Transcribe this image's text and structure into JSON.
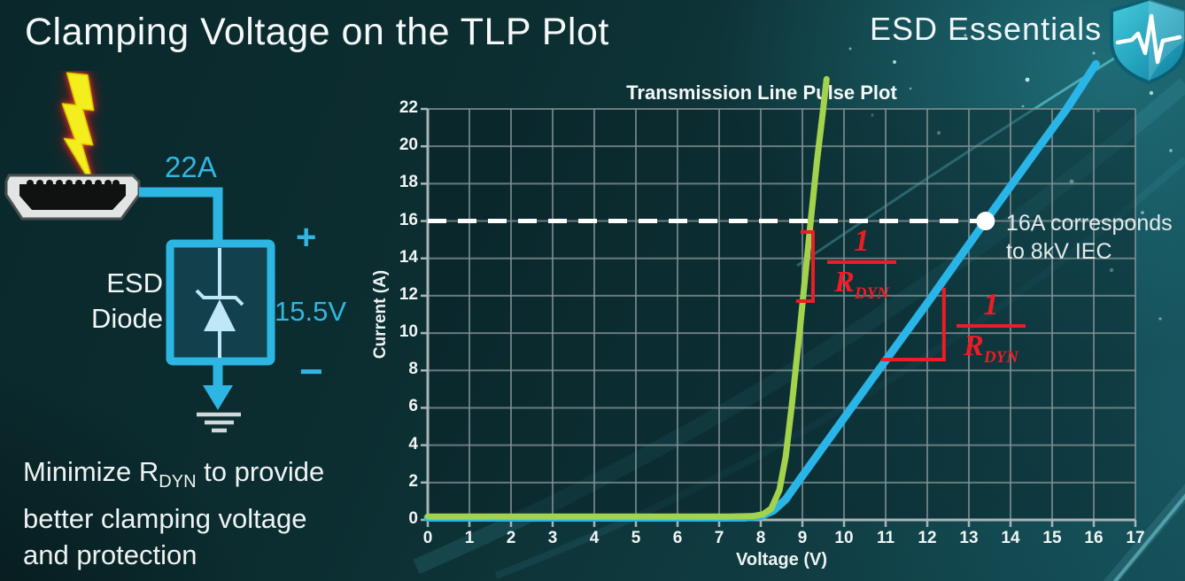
{
  "header": {
    "title": "Clamping Voltage on the TLP Plot",
    "brand": "ESD Essentials"
  },
  "diagram": {
    "surge_current": "22A",
    "component_line1": "ESD",
    "component_line2": "Diode",
    "plus": "+",
    "clamp_voltage": "15.5V",
    "minus": "−"
  },
  "note": {
    "line1_pre": "Minimize R",
    "line1_sub": "DYN",
    "line1_post": " to provide",
    "line2": "better clamping voltage",
    "line3": "and protection"
  },
  "colors": {
    "accent_cyan": "#2db6e3",
    "annotation_red": "#ee1c24",
    "curve_green": "#a3d34c",
    "curve_blue": "#2ab5e8",
    "grid": "#7f9093"
  },
  "chart_data": {
    "type": "line",
    "title": "Transmission Line Pulse Plot",
    "xlabel": "Voltage (V)",
    "ylabel": "Current (A)",
    "xlim": [
      0,
      17
    ],
    "ylim": [
      0,
      22
    ],
    "xticks": [
      0,
      1,
      2,
      3,
      4,
      5,
      6,
      7,
      8,
      9,
      10,
      11,
      12,
      13,
      14,
      15,
      16,
      17
    ],
    "yticks": [
      0,
      2,
      4,
      6,
      8,
      10,
      12,
      14,
      16,
      18,
      20,
      22
    ],
    "grid": {
      "on": true,
      "x_step": 1,
      "y_step": 2,
      "color": "#7f9093"
    },
    "legend": "none",
    "series": [
      {
        "name": "blue-curve-higher-rdyn",
        "color": "#2ab5e8",
        "width": 9,
        "points": [
          [
            0,
            0.12
          ],
          [
            7.6,
            0.12
          ],
          [
            8.0,
            0.2
          ],
          [
            8.3,
            0.5
          ],
          [
            8.6,
            1.1
          ],
          [
            8.95,
            2.2
          ],
          [
            9.4,
            3.6
          ],
          [
            10.5,
            7.0
          ],
          [
            12.0,
            11.6
          ],
          [
            13.4,
            16.0
          ],
          [
            14.5,
            19.4
          ],
          [
            15.35,
            22.0
          ],
          [
            16.05,
            24.4
          ]
        ]
      },
      {
        "name": "green-curve-low-rdyn",
        "color": "#a3d34c",
        "width": 7,
        "points": [
          [
            0,
            0.18
          ],
          [
            7.2,
            0.18
          ],
          [
            7.8,
            0.2
          ],
          [
            8.05,
            0.3
          ],
          [
            8.25,
            0.6
          ],
          [
            8.45,
            1.6
          ],
          [
            8.6,
            3.4
          ],
          [
            8.75,
            6.2
          ],
          [
            8.95,
            10.4
          ],
          [
            9.2,
            16.0
          ],
          [
            9.35,
            19.2
          ],
          [
            9.5,
            22.0
          ],
          [
            9.58,
            23.6
          ]
        ]
      }
    ],
    "guide_line": {
      "y": 16,
      "x_start": 0,
      "x_end": 13.4,
      "color": "#ffffff",
      "width": 5,
      "dash": [
        21,
        13
      ]
    },
    "marker": {
      "x": 13.4,
      "y": 16,
      "radius": 10.5,
      "color": "#ffffff"
    },
    "red_slope_marks": [
      {
        "color": "#ee1c24",
        "width": 4,
        "segments": [
          [
            [
              9.0,
              15.41
            ],
            [
              9.255,
              15.41
            ]
          ],
          [
            [
              9.255,
              15.41
            ],
            [
              9.255,
              11.71
            ]
          ],
          [
            [
              8.89,
              11.71
            ],
            [
              9.255,
              11.71
            ]
          ]
        ]
      },
      {
        "color": "#ee1c24",
        "width": 4,
        "segments": [
          [
            [
              12.4,
              12.33
            ],
            [
              12.4,
              8.58
            ]
          ],
          [
            [
              10.94,
              8.58
            ],
            [
              12.4,
              8.58
            ]
          ]
        ]
      }
    ],
    "annotations": {
      "marker_label_line1": "16A corresponds",
      "marker_label_line2": "to 8kV IEC",
      "slope_fraction": {
        "numerator": "1",
        "denominator_main": "R",
        "denominator_sub": "DYN"
      }
    }
  }
}
